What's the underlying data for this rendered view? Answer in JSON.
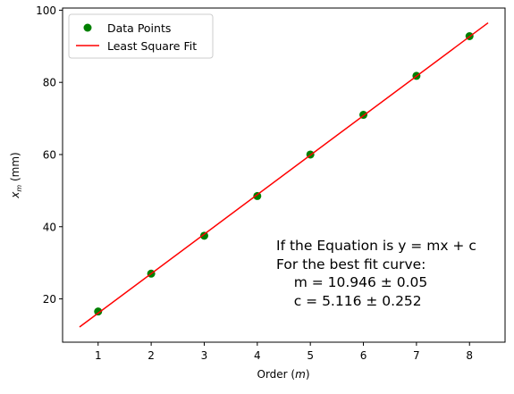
{
  "chart_data": {
    "type": "scatter",
    "xlabel": "Order (m)",
    "ylabel": "x_m (mm)",
    "xlim": [
      0.33,
      8.67
    ],
    "ylim": [
      8.0,
      100.6
    ],
    "x_ticks": [
      1,
      2,
      3,
      4,
      5,
      6,
      7,
      8
    ],
    "y_ticks": [
      20,
      40,
      60,
      80,
      100
    ],
    "grid": false,
    "legend": {
      "placement": "upper-left",
      "entries": [
        "Data Points",
        "Least Square Fit"
      ]
    },
    "series": [
      {
        "name": "Data Points",
        "kind": "scatter",
        "color": "#008000",
        "x": [
          1,
          2,
          3,
          4,
          5,
          6,
          7,
          8
        ],
        "y": [
          16.5,
          27.0,
          37.5,
          48.5,
          60.0,
          71.0,
          81.8,
          92.8
        ]
      },
      {
        "name": "Least Square Fit",
        "kind": "line",
        "color": "#ff0000",
        "x": [
          0.65,
          8.35
        ],
        "y": [
          12.2,
          96.5
        ]
      }
    ],
    "annotation": [
      "If the Equation is y = mx + c",
      "For the best fit curve:",
      "    m = 10.946 ± 0.05",
      "    c = 5.116 ± 0.252"
    ]
  }
}
